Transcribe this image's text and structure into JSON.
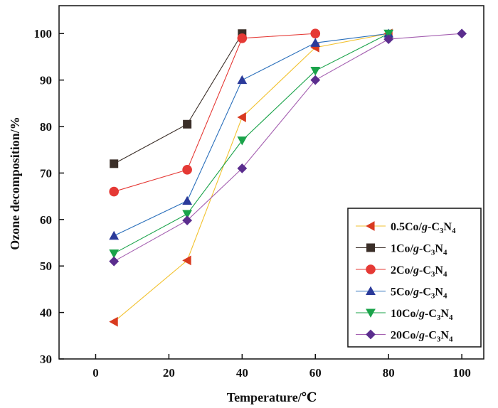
{
  "chart_data": {
    "type": "line",
    "title": "",
    "xlabel": "Temperature/℃",
    "ylabel": "Ozone decomposition/%",
    "xlim": [
      -10,
      106
    ],
    "ylim": [
      30,
      106
    ],
    "xticks": [
      0,
      20,
      40,
      60,
      80,
      100
    ],
    "yticks": [
      30,
      40,
      50,
      60,
      70,
      80,
      90,
      100
    ],
    "grid": false,
    "legend_position": "right",
    "series": [
      {
        "name": "0.5Co/g-C3N4",
        "legend": {
          "prefix": "0.5Co/",
          "g": "g",
          "mid": "-C",
          "sub1": "3",
          "n": "N",
          "sub2": "4"
        },
        "marker": "triangle-left",
        "color": "#d93a1f",
        "line_color": "#f2c230",
        "x": [
          5,
          25,
          40,
          60,
          80
        ],
        "y": [
          38,
          51.2,
          82,
          97,
          100
        ]
      },
      {
        "name": "1Co/g-C3N4",
        "legend": {
          "prefix": "1Co/",
          "g": "g",
          "mid": "-C",
          "sub1": "3",
          "n": "N",
          "sub2": "4"
        },
        "marker": "square",
        "color": "#3a2e28",
        "line_color": "#3a2e28",
        "x": [
          5,
          25,
          40
        ],
        "y": [
          72,
          80.5,
          100
        ]
      },
      {
        "name": "2Co/g-C3N4",
        "legend": {
          "prefix": "2Co/",
          "g": "g",
          "mid": "-C",
          "sub1": "3",
          "n": "N",
          "sub2": "4"
        },
        "marker": "circle",
        "color": "#e53935",
        "line_color": "#e53935",
        "x": [
          5,
          25,
          40,
          60
        ],
        "y": [
          66,
          70.7,
          99,
          100
        ]
      },
      {
        "name": "5Co/g-C3N4",
        "legend": {
          "prefix": "5Co/",
          "g": "g",
          "mid": "-C",
          "sub1": "3",
          "n": "N",
          "sub2": "4"
        },
        "marker": "triangle-up",
        "color": "#2b3a9a",
        "line_color": "#2a6fbb",
        "x": [
          5,
          25,
          40,
          60,
          80
        ],
        "y": [
          56.5,
          64,
          90,
          98,
          100
        ]
      },
      {
        "name": "10Co/g-C3N4",
        "legend": {
          "prefix": "10Co/",
          "g": "g",
          "mid": "-C",
          "sub1": "3",
          "n": "N",
          "sub2": "4"
        },
        "marker": "triangle-down",
        "color": "#1aa34a",
        "line_color": "#1aa34a",
        "x": [
          5,
          25,
          40,
          60,
          80
        ],
        "y": [
          52.7,
          61.2,
          77,
          92,
          100
        ]
      },
      {
        "name": "20Co/g-C3N4",
        "legend": {
          "prefix": "20Co/",
          "g": "g",
          "mid": "-C",
          "sub1": "3",
          "n": "N",
          "sub2": "4"
        },
        "marker": "diamond",
        "color": "#5b2d8e",
        "line_color": "#a45fb0",
        "x": [
          5,
          25,
          40,
          60,
          80,
          100
        ],
        "y": [
          51,
          59.8,
          71,
          90,
          98.8,
          100
        ]
      }
    ]
  }
}
